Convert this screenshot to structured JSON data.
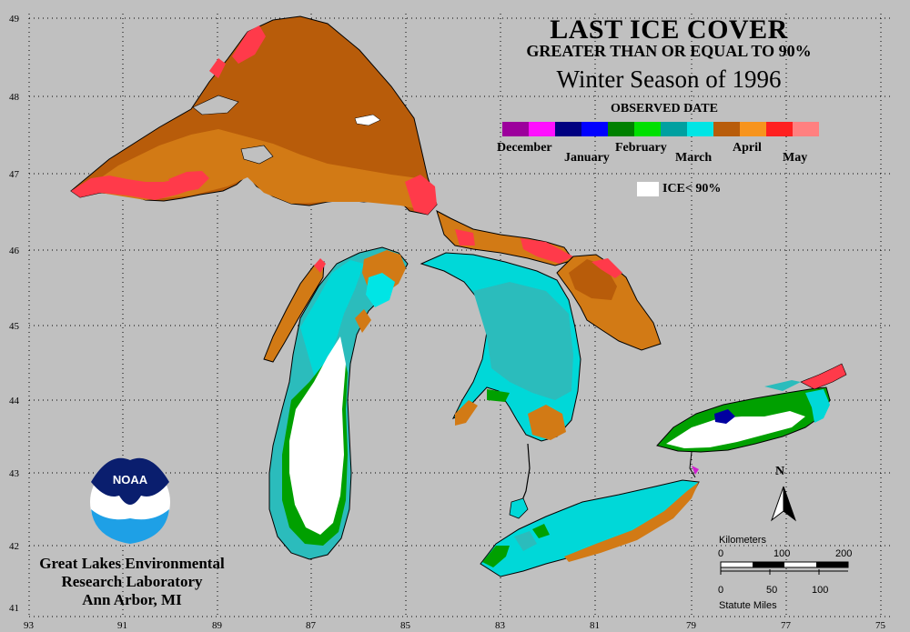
{
  "title": {
    "main": "LAST ICE COVER",
    "sub": "GREATER THAN OR EQUAL TO 90%",
    "season": "Winter Season of 1996"
  },
  "legend": {
    "title": "OBSERVED DATE",
    "colors": [
      "#9c009c",
      "#ff10ff",
      "#000080",
      "#0000ff",
      "#008000",
      "#00e000",
      "#00a0a0",
      "#00e5e5",
      "#b85c0a",
      "#f7941d",
      "#ff2020",
      "#ff8080"
    ],
    "months": [
      "December",
      "January",
      "February",
      "March",
      "April",
      "May"
    ],
    "ice_label": "ICE< 90%"
  },
  "axes": {
    "lat_ticks": [
      "49",
      "48",
      "47",
      "46",
      "45",
      "44",
      "43",
      "42",
      "41"
    ],
    "lon_ticks": [
      "93",
      "91",
      "89",
      "87",
      "85",
      "83",
      "81",
      "79",
      "77",
      "75"
    ]
  },
  "lab": {
    "line1": "Great Lakes Environmental",
    "line2": "Research Laboratory",
    "line3": "Ann Arbor, MI"
  },
  "logo": {
    "text": "NOAA"
  },
  "scale": {
    "km_label": "Kilometers",
    "km_ticks": [
      "0",
      "100",
      "200"
    ],
    "mi_ticks": [
      "0",
      "50",
      "100"
    ],
    "mi_label": "Statute Miles"
  },
  "north_label": "N",
  "colors": {
    "background": "#c0c0c0",
    "april_dark": "#b85c0a",
    "april_light": "#d27a15",
    "may": "#ff3a4a",
    "march": "#00d8d8",
    "march_dark": "#2bbcbc",
    "february": "#00a000",
    "ice_lt_90": "#ffffff",
    "january": "#0000a0",
    "shore": "#000000"
  }
}
